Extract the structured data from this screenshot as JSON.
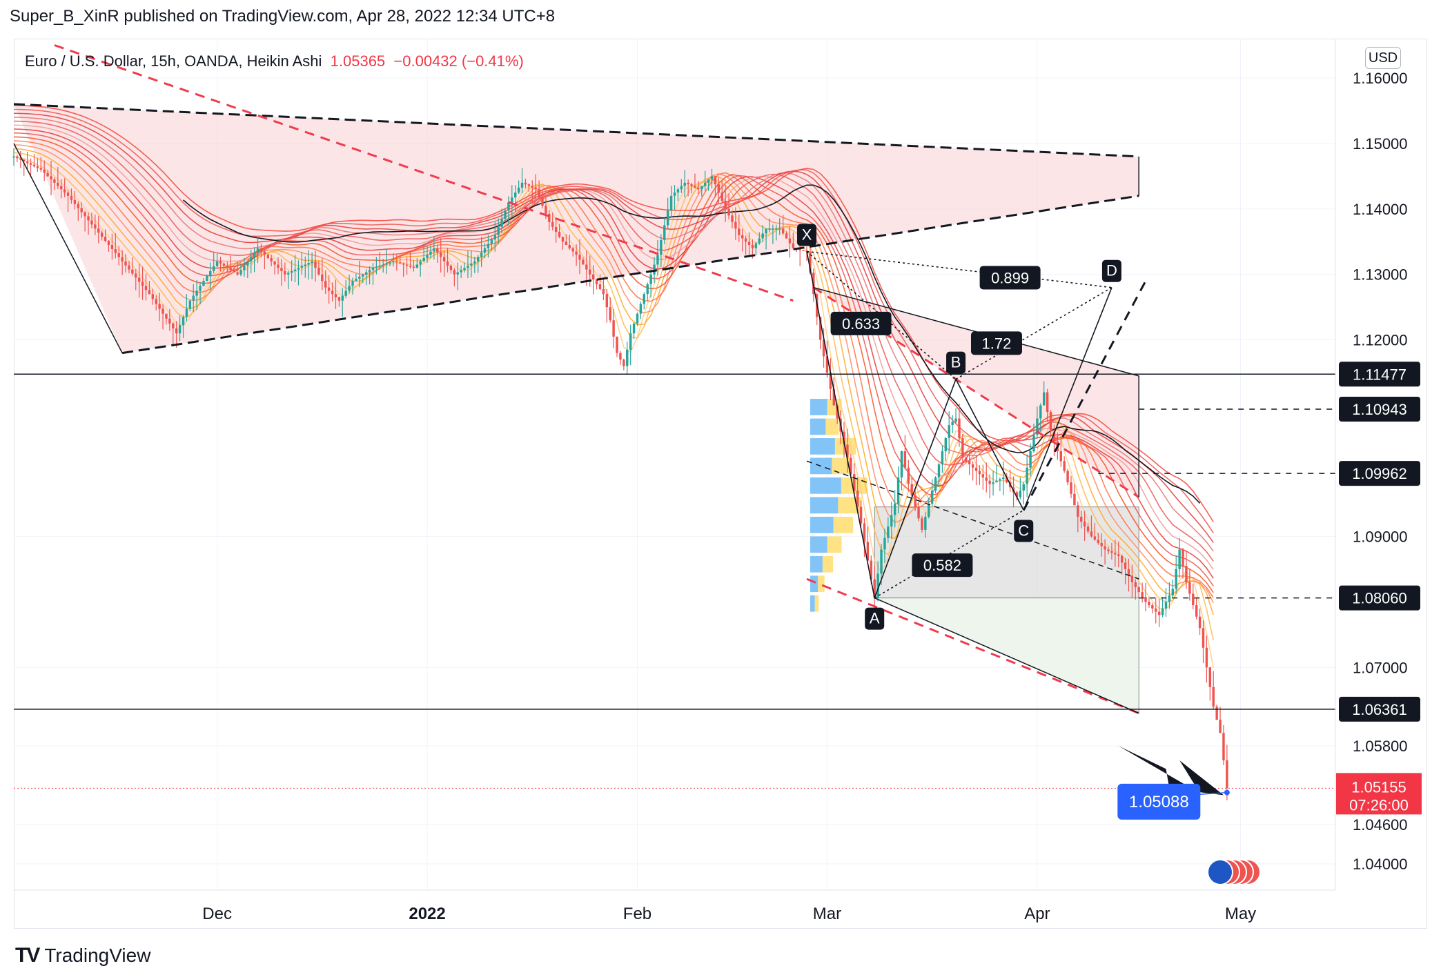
{
  "header": {
    "publisher_line": "Super_B_XinR published on TradingView.com, Apr 28, 2022 12:34 UTC+8"
  },
  "legend": {
    "symbol": "Euro / U.S. Dollar, 15h, OANDA, Heikin Ashi",
    "close": "1.05365",
    "change": "−0.00432 (−0.41%)"
  },
  "currency_button": "USD",
  "footer": {
    "logo_text": "TradingView"
  },
  "colors": {
    "bull": "#26a69a",
    "bear": "#ef5350",
    "band_fill": "#f9d4d6",
    "box_gray": "#d6d6d6",
    "box_green": "#e8f3e8",
    "price_tag": "#f23645",
    "cursor_tag": "#2962ff"
  },
  "chart_data": {
    "type": "candlestick",
    "title": "",
    "instrument": "Euro / U.S. Dollar, 15h, OANDA, Heikin Ashi",
    "xlabel": "",
    "ylabel": "",
    "ylim": [
      1.036,
      1.166
    ],
    "x_ticks": [
      {
        "label": "Dec",
        "day": 30,
        "bold": false
      },
      {
        "label": "2022",
        "day": 61,
        "bold": true
      },
      {
        "label": "Feb",
        "day": 92,
        "bold": false
      },
      {
        "label": "Mar",
        "day": 120,
        "bold": false
      },
      {
        "label": "Apr",
        "day": 151,
        "bold": false
      },
      {
        "label": "May",
        "day": 181,
        "bold": false
      }
    ],
    "y_ticks": [
      "1.04000",
      "1.04600",
      "1.05800",
      "1.07000",
      "1.09000",
      "1.12000",
      "1.13000",
      "1.14000",
      "1.15000",
      "1.16000"
    ],
    "price_lines": [
      {
        "label": "1.11477",
        "style": "solid"
      },
      {
        "label": "1.10943",
        "style": "dashed"
      },
      {
        "label": "1.09962",
        "style": "dashed"
      },
      {
        "label": "1.08060",
        "style": "dashed"
      },
      {
        "label": "1.06361",
        "style": "solid"
      }
    ],
    "last_price": {
      "label": "1.05155",
      "countdown": "07:26:00"
    },
    "cursor_price": "1.05088",
    "harmonic": {
      "points": [
        {
          "label": "X",
          "day": 117,
          "price": 1.1335
        },
        {
          "label": "A",
          "day": 127,
          "price": 1.0806
        },
        {
          "label": "B",
          "day": 139,
          "price": 1.114
        },
        {
          "label": "C",
          "day": 149,
          "price": 1.094
        },
        {
          "label": "D",
          "day": 162,
          "price": 1.128
        }
      ],
      "ratios": [
        "0.899",
        "0.633",
        "1.72",
        "0.582"
      ]
    },
    "series": [
      {
        "kind": "price",
        "points": [
          [
            0,
            1.148
          ],
          [
            4,
            1.146
          ],
          [
            8,
            1.142
          ],
          [
            12,
            1.137
          ],
          [
            16,
            1.132
          ],
          [
            20,
            1.127
          ],
          [
            22,
            1.124
          ],
          [
            24,
            1.121
          ],
          [
            26,
            1.126
          ],
          [
            28,
            1.129
          ],
          [
            30,
            1.132
          ],
          [
            33,
            1.13
          ],
          [
            36,
            1.134
          ],
          [
            40,
            1.13
          ],
          [
            44,
            1.132
          ],
          [
            46,
            1.128
          ],
          [
            48,
            1.126
          ],
          [
            50,
            1.129
          ],
          [
            53,
            1.131
          ],
          [
            56,
            1.132
          ],
          [
            59,
            1.131
          ],
          [
            62,
            1.134
          ],
          [
            65,
            1.13
          ],
          [
            68,
            1.132
          ],
          [
            71,
            1.136
          ],
          [
            73,
            1.141
          ],
          [
            75,
            1.144
          ],
          [
            77,
            1.143
          ],
          [
            79,
            1.138
          ],
          [
            81,
            1.135
          ],
          [
            83,
            1.133
          ],
          [
            85,
            1.13
          ],
          [
            87,
            1.127
          ],
          [
            88,
            1.123
          ],
          [
            89,
            1.118
          ],
          [
            90,
            1.116
          ],
          [
            91,
            1.121
          ],
          [
            93,
            1.127
          ],
          [
            95,
            1.133
          ],
          [
            97,
            1.142
          ],
          [
            99,
            1.144
          ],
          [
            101,
            1.143
          ],
          [
            103,
            1.145
          ],
          [
            105,
            1.14
          ],
          [
            107,
            1.136
          ],
          [
            109,
            1.134
          ],
          [
            111,
            1.137
          ],
          [
            113,
            1.137
          ],
          [
            115,
            1.134
          ],
          [
            117,
            1.1335
          ],
          [
            118,
            1.127
          ],
          [
            119,
            1.12
          ],
          [
            120,
            1.115
          ],
          [
            121,
            1.11
          ],
          [
            123,
            1.102
          ],
          [
            125,
            1.092
          ],
          [
            127,
            1.0806
          ],
          [
            128,
            1.088
          ],
          [
            130,
            1.095
          ],
          [
            131,
            1.103
          ],
          [
            132,
            1.098
          ],
          [
            134,
            1.091
          ],
          [
            136,
            1.099
          ],
          [
            138,
            1.107
          ],
          [
            139,
            1.108
          ],
          [
            140,
            1.102
          ],
          [
            142,
            1.1
          ],
          [
            144,
            1.098
          ],
          [
            146,
            1.099
          ],
          [
            148,
            1.096
          ],
          [
            149,
            1.098
          ],
          [
            151,
            1.108
          ],
          [
            152,
            1.112
          ],
          [
            153,
            1.106
          ],
          [
            155,
            1.1
          ],
          [
            157,
            1.093
          ],
          [
            159,
            1.09
          ],
          [
            161,
            1.088
          ],
          [
            163,
            1.087
          ],
          [
            165,
            1.083
          ],
          [
            167,
            1.08
          ],
          [
            169,
            1.078
          ],
          [
            171,
            1.082
          ],
          [
            172,
            1.088
          ],
          [
            173,
            1.083
          ],
          [
            175,
            1.076
          ],
          [
            176,
            1.07
          ],
          [
            177,
            1.064
          ],
          [
            178,
            1.06
          ],
          [
            179,
            1.0516
          ]
        ]
      }
    ]
  }
}
